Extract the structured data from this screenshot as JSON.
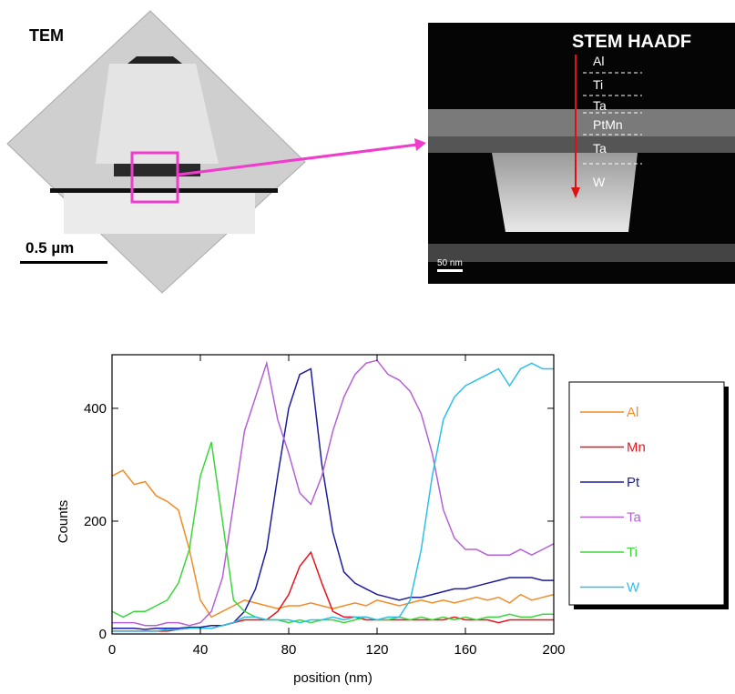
{
  "figure": {
    "tem": {
      "label": "TEM",
      "scale_bar": "0.5 µm"
    },
    "stem": {
      "label": "STEM HAADF",
      "layers": [
        "Al",
        "Ti",
        "Ta",
        "PtMn",
        "Ta",
        "W"
      ],
      "scale_bar": "50 nm"
    }
  },
  "chart_data": {
    "type": "line",
    "x_label": "position (nm)",
    "y_label": "Counts",
    "x": [
      0,
      5,
      10,
      15,
      20,
      25,
      30,
      35,
      40,
      45,
      50,
      55,
      60,
      65,
      70,
      75,
      80,
      85,
      90,
      95,
      100,
      105,
      110,
      115,
      120,
      125,
      130,
      135,
      140,
      145,
      150,
      155,
      160,
      165,
      170,
      175,
      180,
      185,
      190,
      195,
      200
    ],
    "series": [
      {
        "name": "Al",
        "color": "#f28c28",
        "values": [
          280,
          290,
          265,
          270,
          245,
          235,
          220,
          150,
          60,
          30,
          40,
          50,
          60,
          55,
          50,
          45,
          50,
          50,
          55,
          50,
          45,
          50,
          55,
          50,
          60,
          55,
          50,
          55,
          60,
          55,
          60,
          55,
          60,
          65,
          60,
          65,
          55,
          70,
          60,
          65,
          70
        ]
      },
      {
        "name": "Mn",
        "color": "#e8141c",
        "values": [
          5,
          5,
          5,
          5,
          5,
          5,
          8,
          10,
          10,
          10,
          15,
          20,
          25,
          25,
          25,
          40,
          70,
          120,
          145,
          90,
          40,
          30,
          30,
          25,
          25,
          25,
          25,
          25,
          25,
          25,
          25,
          30,
          25,
          25,
          25,
          20,
          25,
          25,
          25,
          25,
          25
        ]
      },
      {
        "name": "Pt",
        "color": "#1c1c9c",
        "values": [
          10,
          10,
          10,
          8,
          10,
          10,
          10,
          12,
          12,
          15,
          15,
          20,
          40,
          80,
          150,
          280,
          400,
          460,
          470,
          300,
          180,
          110,
          90,
          80,
          70,
          65,
          60,
          65,
          65,
          70,
          75,
          80,
          80,
          85,
          90,
          95,
          100,
          100,
          100,
          95,
          95
        ]
      },
      {
        "name": "Ta",
        "color": "#b560d6",
        "values": [
          20,
          20,
          20,
          15,
          15,
          20,
          20,
          15,
          20,
          40,
          100,
          230,
          360,
          420,
          480,
          380,
          320,
          250,
          230,
          280,
          360,
          420,
          460,
          480,
          485,
          460,
          450,
          430,
          390,
          320,
          220,
          170,
          150,
          150,
          140,
          140,
          140,
          150,
          140,
          150,
          160
        ]
      },
      {
        "name": "Ti",
        "color": "#3cd63c",
        "values": [
          40,
          30,
          40,
          40,
          50,
          60,
          90,
          150,
          280,
          340,
          200,
          60,
          40,
          30,
          25,
          25,
          20,
          25,
          20,
          25,
          25,
          20,
          25,
          30,
          25,
          25,
          30,
          25,
          30,
          25,
          30,
          25,
          30,
          25,
          30,
          30,
          35,
          30,
          30,
          35,
          35
        ]
      },
      {
        "name": "W",
        "color": "#2cc0e8",
        "values": [
          5,
          5,
          5,
          5,
          5,
          8,
          8,
          10,
          10,
          10,
          15,
          20,
          30,
          30,
          25,
          25,
          25,
          20,
          25,
          25,
          30,
          25,
          30,
          30,
          25,
          30,
          30,
          60,
          150,
          280,
          380,
          420,
          440,
          450,
          460,
          470,
          440,
          470,
          480,
          470,
          470
        ]
      }
    ],
    "xlim": [
      0,
      200
    ],
    "xticks": [
      0,
      40,
      80,
      120,
      160,
      200
    ],
    "ylim": [
      0,
      495
    ],
    "yticks": [
      0,
      200,
      400
    ],
    "legend": "right"
  }
}
